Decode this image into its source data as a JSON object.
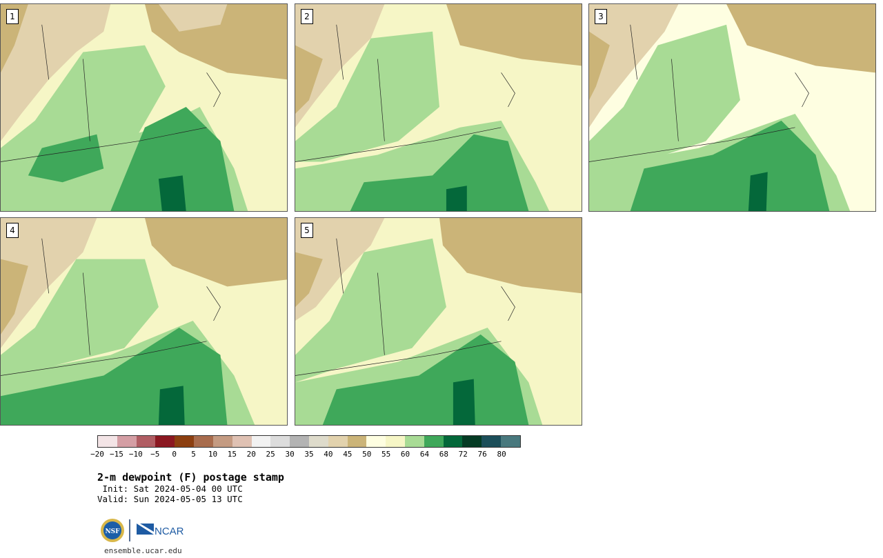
{
  "panels": [
    {
      "label": "1"
    },
    {
      "label": "2"
    },
    {
      "label": "3"
    },
    {
      "label": "4"
    },
    {
      "label": "5"
    }
  ],
  "colorbar": {
    "colors": [
      "#f3e4e6",
      "#d49ea4",
      "#b05d63",
      "#8b1821",
      "#8c3f10",
      "#a86c4d",
      "#c49b82",
      "#dfc1b3",
      "#f2f2f2",
      "#dcdcdc",
      "#b3b3b3",
      "#dedbcb",
      "#e2d2ad",
      "#cbb478",
      "#fefee1",
      "#f6f6c6",
      "#a8db95",
      "#3fa85a",
      "#04683a",
      "#053b24",
      "#1c4f5a",
      "#49797e"
    ],
    "ticks": [
      "−20",
      "−15",
      "−10",
      "−5",
      "0",
      "5",
      "10",
      "15",
      "20",
      "25",
      "30",
      "35",
      "40",
      "45",
      "50",
      "55",
      "60",
      "64",
      "68",
      "72",
      "76",
      "80"
    ]
  },
  "title": "2-m dewpoint (F) postage stamp",
  "init": " Init: Sat 2024-05-04 00 UTC",
  "valid": "Valid: Sun 2024-05-05 13 UTC",
  "logos": {
    "nsf": "NSF",
    "ncar": "NCAR"
  },
  "site": "ensemble.ucar.edu"
}
